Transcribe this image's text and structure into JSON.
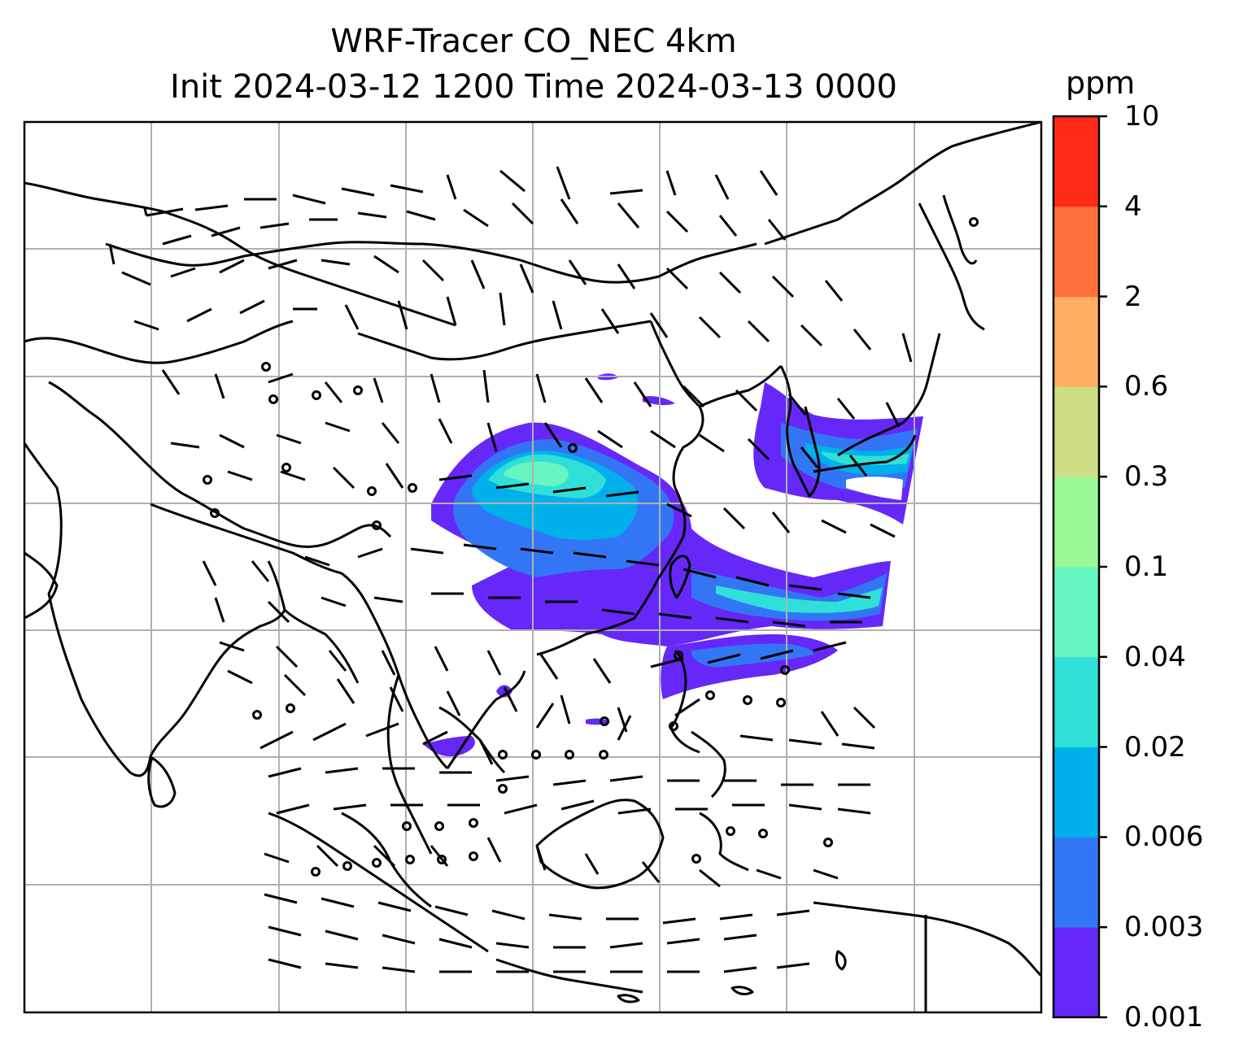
{
  "title": {
    "line1": "WRF-Tracer CO_NEC 4km",
    "line2": "Init 2024-03-12 1200 Time 2024-03-13 0000"
  },
  "colorbar": {
    "unit": "ppm",
    "levels": [
      "0.001",
      "0.003",
      "0.006",
      "0.02",
      "0.04",
      "0.1",
      "0.3",
      "0.6",
      "2",
      "4",
      "10"
    ],
    "colors": [
      "#6528f8",
      "#3376f5",
      "#00b0ea",
      "#30e0d8",
      "#67f6c2",
      "#9af895",
      "#cede85",
      "#ffad60",
      "#ff703c",
      "#ff2c18"
    ]
  },
  "map": {
    "grid": true,
    "features": [
      "coastlines",
      "country-borders",
      "wind-barbs",
      "co-tracer-plume"
    ]
  }
}
